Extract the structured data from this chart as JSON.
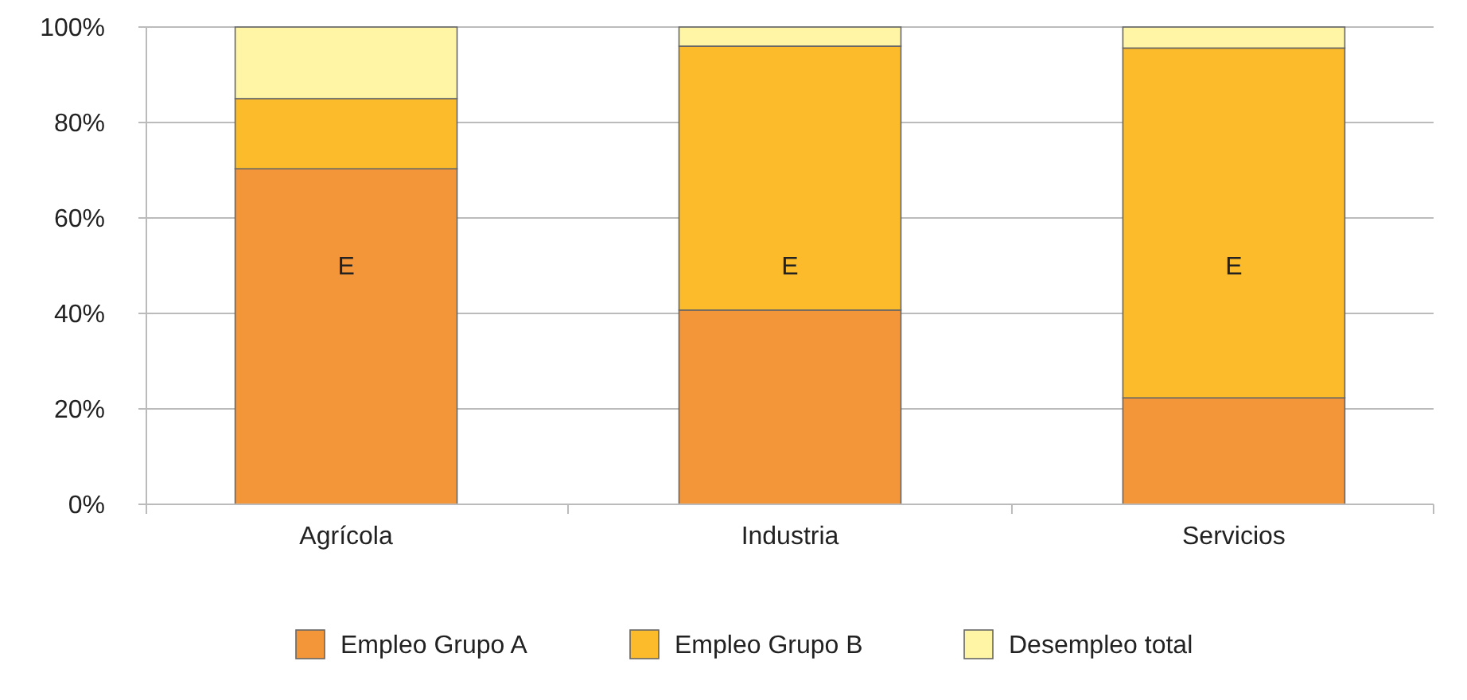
{
  "chart_data": {
    "type": "bar",
    "stacked": true,
    "categories": [
      "Agrícola",
      "Industria",
      "Servicios"
    ],
    "series": [
      {
        "name": "Empleo Grupo A",
        "color": "#f39539",
        "values": [
          70.3,
          40.7,
          22.3
        ]
      },
      {
        "name": "Empleo Grupo B",
        "color": "#fbbb2a",
        "values": [
          14.7,
          55.3,
          73.3
        ]
      },
      {
        "name": "Desempleo total",
        "color": "#fff5a5",
        "values": [
          15,
          4,
          4.4
        ]
      }
    ],
    "ylim": [
      0,
      100
    ],
    "yticks": [
      {
        "value": 0,
        "label": "0%"
      },
      {
        "value": 20,
        "label": "20%"
      },
      {
        "value": 40,
        "label": "40%"
      },
      {
        "value": 60,
        "label": "60%"
      },
      {
        "value": 80,
        "label": "80%"
      },
      {
        "value": 100,
        "label": "100%"
      }
    ],
    "grid": "y",
    "legend": "bottom",
    "annotations": [
      "E",
      "E",
      "E"
    ]
  }
}
